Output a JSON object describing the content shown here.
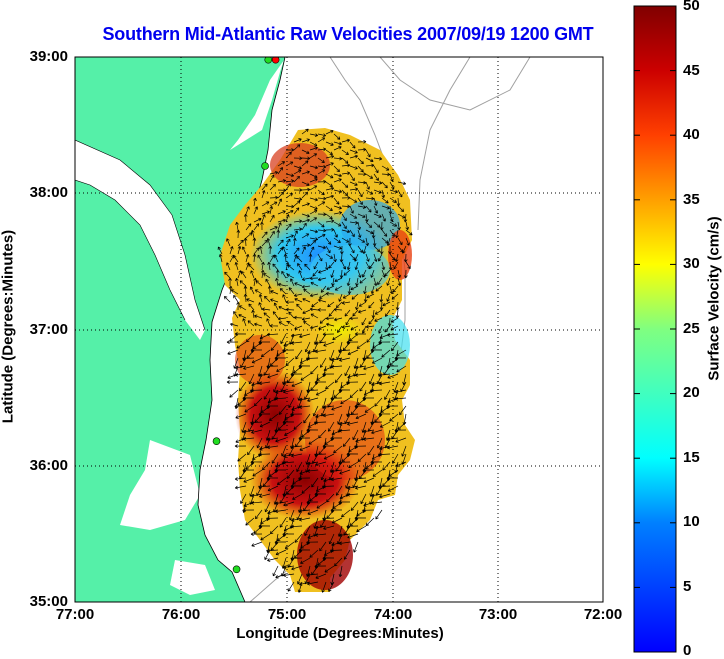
{
  "title": "Southern Mid-Atlantic Raw Velocities 2007/09/19 1200 GMT",
  "chart_data": {
    "type": "map",
    "title": "Southern Mid-Atlantic Raw Velocities 2007/09/19 1200 GMT",
    "xlabel": "Longitude (Degrees:Minutes)",
    "ylabel": "Latitude (Degrees:Minutes)",
    "x_ticks": [
      "77:00",
      "76:00",
      "75:00",
      "74:00",
      "73:00",
      "72:00"
    ],
    "y_ticks": [
      "39:00",
      "38:00",
      "37:00",
      "36:00",
      "35:00"
    ],
    "xlim": [
      -77,
      -72
    ],
    "ylim": [
      35,
      39
    ],
    "grid": true,
    "colorbar": {
      "label": "Surface Velocity (cm/s)",
      "range": [
        0,
        50
      ],
      "ticks": [
        "50",
        "45",
        "40",
        "35",
        "30",
        "25",
        "20",
        "15",
        "10",
        "5",
        "0"
      ],
      "colormap": [
        "#0000ff",
        "#00ffff",
        "#ffff00",
        "#ff0000",
        "#800000"
      ]
    },
    "land_color": "#55f0a8",
    "site_markers": [
      {
        "lon": -75.1,
        "lat": 38.98,
        "color": "#ff0000"
      },
      {
        "lon": -75.17,
        "lat": 38.98,
        "color": "#22dd22"
      },
      {
        "lon": -75.2,
        "lat": 38.2,
        "color": "#22dd22"
      },
      {
        "lon": -75.66,
        "lat": 36.18,
        "color": "#22dd22"
      },
      {
        "lon": -75.47,
        "lat": 35.24,
        "color": "#22dd22"
      }
    ]
  }
}
